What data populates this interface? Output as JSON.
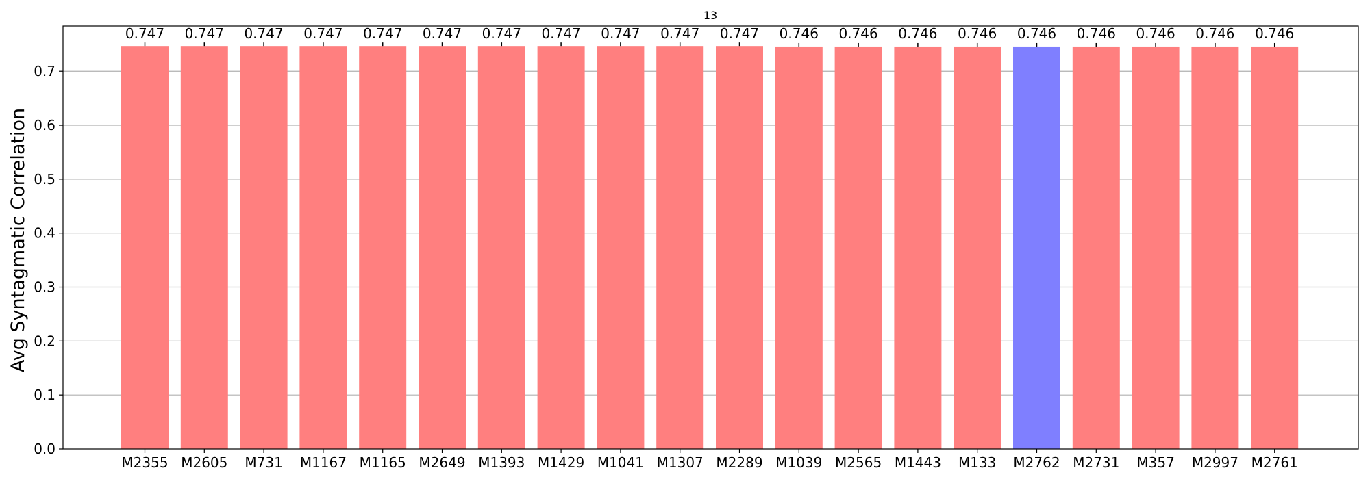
{
  "chart_data": {
    "type": "bar",
    "title": "13",
    "xlabel": "",
    "ylabel": "Avg Syntagmatic Correlation",
    "ylim": [
      0.0,
      0.784
    ],
    "yticks": [
      "0.0",
      "0.1",
      "0.2",
      "0.3",
      "0.4",
      "0.5",
      "0.6",
      "0.7"
    ],
    "grid": "horizontal",
    "categories": [
      "M2355",
      "M2605",
      "M731",
      "M1167",
      "M1165",
      "M2649",
      "M1393",
      "M1429",
      "M1041",
      "M1307",
      "M2289",
      "M1039",
      "M2565",
      "M1443",
      "M133",
      "M2762",
      "M2731",
      "M357",
      "M2997",
      "M2761"
    ],
    "values": [
      0.747,
      0.747,
      0.747,
      0.747,
      0.747,
      0.747,
      0.747,
      0.747,
      0.747,
      0.747,
      0.747,
      0.746,
      0.746,
      0.746,
      0.746,
      0.746,
      0.746,
      0.746,
      0.746,
      0.746
    ],
    "value_labels": [
      "0.747",
      "0.747",
      "0.747",
      "0.747",
      "0.747",
      "0.747",
      "0.747",
      "0.747",
      "0.747",
      "0.747",
      "0.747",
      "0.746",
      "0.746",
      "0.746",
      "0.746",
      "0.746",
      "0.746",
      "0.746",
      "0.746",
      "0.746"
    ],
    "highlight_index": 15,
    "colors": {
      "bar": "#ff7f7f",
      "highlight": "#7f7fff",
      "grid": "#b0b0b0",
      "axis": "#000000"
    }
  }
}
